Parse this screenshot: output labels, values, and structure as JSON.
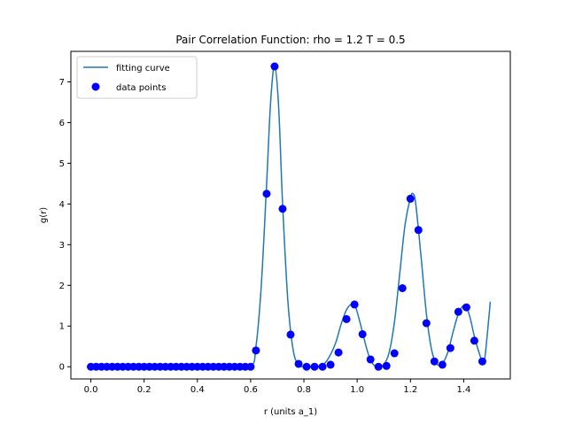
{
  "chart_data": {
    "type": "scatter",
    "title": "Pair Correlation Function: rho = 1.2 T = 0.5",
    "xlabel": "r (units a_1)",
    "ylabel": "g(r)",
    "xlim": [
      -0.075,
      1.575
    ],
    "ylim": [
      -0.3,
      7.75
    ],
    "xticks": [
      0.0,
      0.2,
      0.4,
      0.6,
      0.8,
      1.0,
      1.2,
      1.4
    ],
    "xtick_labels": [
      "0.0",
      "0.2",
      "0.4",
      "0.6",
      "0.8",
      "1.0",
      "1.2",
      "1.4"
    ],
    "yticks": [
      0,
      1,
      2,
      3,
      4,
      5,
      6,
      7
    ],
    "ytick_labels": [
      "0",
      "1",
      "2",
      "3",
      "4",
      "5",
      "6",
      "7"
    ],
    "grid": false,
    "legend": {
      "position": "top-left",
      "entries": [
        "fitting curve",
        "data points"
      ]
    },
    "colors": {
      "curve": "#1f77b4",
      "points": "#0000ff"
    },
    "series": [
      {
        "name": "fitting curve",
        "type": "line",
        "x": [
          0.0,
          0.5,
          0.6,
          0.62,
          0.64,
          0.66,
          0.675,
          0.69,
          0.705,
          0.72,
          0.74,
          0.76,
          0.78,
          0.8,
          0.82,
          0.84,
          0.86,
          0.88,
          0.9,
          0.92,
          0.94,
          0.96,
          0.98,
          0.99,
          1.0,
          1.02,
          1.04,
          1.06,
          1.08,
          1.1,
          1.12,
          1.14,
          1.16,
          1.18,
          1.2,
          1.21,
          1.22,
          1.24,
          1.26,
          1.28,
          1.3,
          1.32,
          1.34,
          1.36,
          1.38,
          1.4,
          1.42,
          1.44,
          1.46,
          1.47,
          1.48,
          1.5
        ],
        "y": [
          0.0,
          0.0,
          0.02,
          0.5,
          2.0,
          4.5,
          6.5,
          7.4,
          6.4,
          4.0,
          1.6,
          0.4,
          0.05,
          0.0,
          0.0,
          0.0,
          0.02,
          0.1,
          0.3,
          0.6,
          1.05,
          1.4,
          1.55,
          1.52,
          1.35,
          0.85,
          0.35,
          0.06,
          0.0,
          0.05,
          0.35,
          1.1,
          2.3,
          3.5,
          4.15,
          4.25,
          4.0,
          2.7,
          1.3,
          0.4,
          0.06,
          0.08,
          0.35,
          0.85,
          1.3,
          1.5,
          1.3,
          0.75,
          0.3,
          0.15,
          0.25,
          1.6
        ]
      },
      {
        "name": "data points",
        "type": "scatter",
        "x": [
          0.0,
          0.02,
          0.04,
          0.06,
          0.08,
          0.1,
          0.12,
          0.14,
          0.16,
          0.18,
          0.2,
          0.22,
          0.24,
          0.26,
          0.28,
          0.3,
          0.32,
          0.34,
          0.36,
          0.38,
          0.4,
          0.42,
          0.44,
          0.46,
          0.48,
          0.5,
          0.52,
          0.54,
          0.56,
          0.58,
          0.6,
          0.62,
          0.66,
          0.69,
          0.72,
          0.75,
          0.78,
          0.81,
          0.84,
          0.87,
          0.9,
          0.93,
          0.96,
          0.99,
          1.02,
          1.05,
          1.08,
          1.11,
          1.14,
          1.17,
          1.2,
          1.23,
          1.26,
          1.29,
          1.32,
          1.35,
          1.38,
          1.41,
          1.44,
          1.47
        ],
        "y": [
          0.0,
          0.0,
          0.0,
          0.0,
          0.0,
          0.0,
          0.0,
          0.0,
          0.0,
          0.0,
          0.0,
          0.0,
          0.0,
          0.0,
          0.0,
          0.0,
          0.0,
          0.0,
          0.0,
          0.0,
          0.0,
          0.0,
          0.0,
          0.0,
          0.0,
          0.0,
          0.0,
          0.0,
          0.0,
          0.0,
          0.0,
          0.4,
          4.25,
          7.38,
          3.88,
          0.79,
          0.07,
          0.0,
          0.0,
          0.0,
          0.05,
          0.35,
          1.17,
          1.53,
          0.8,
          0.18,
          0.0,
          0.02,
          0.33,
          1.93,
          4.13,
          3.36,
          1.07,
          0.13,
          0.05,
          0.46,
          1.35,
          1.46,
          0.64,
          0.13
        ]
      }
    ]
  }
}
